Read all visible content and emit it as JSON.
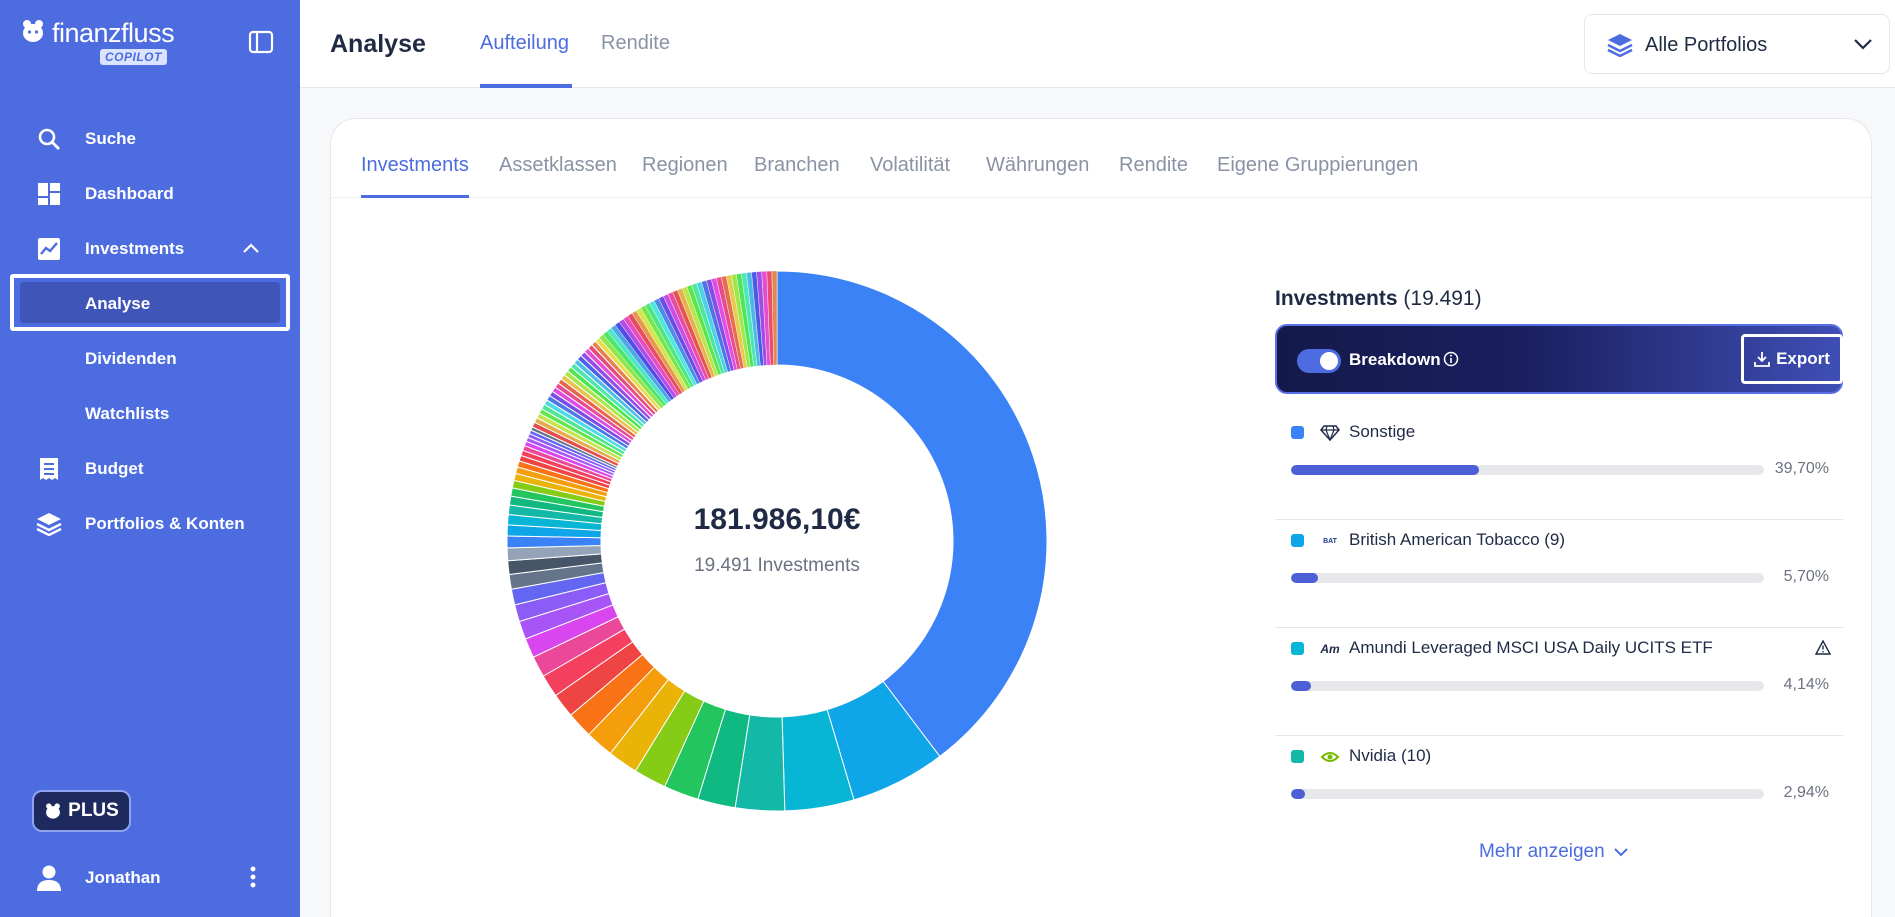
{
  "app": {
    "brand": "finanzfluss",
    "brand_badge": "COPILOT"
  },
  "sidebar": {
    "items": [
      {
        "label": "Suche"
      },
      {
        "label": "Dashboard"
      },
      {
        "label": "Investments"
      },
      {
        "label": "Analyse"
      },
      {
        "label": "Dividenden"
      },
      {
        "label": "Watchlists"
      },
      {
        "label": "Budget"
      },
      {
        "label": "Portfolios & Konten"
      }
    ],
    "plus_label": "PLUS",
    "user_name": "Jonathan"
  },
  "header": {
    "title": "Analyse",
    "tabs": [
      {
        "label": "Aufteilung",
        "active": true
      },
      {
        "label": "Rendite",
        "active": false
      }
    ],
    "portfolio_select": "Alle Portfolios"
  },
  "subtabs": [
    {
      "label": "Investments"
    },
    {
      "label": "Assetklassen"
    },
    {
      "label": "Regionen"
    },
    {
      "label": "Branchen"
    },
    {
      "label": "Volatilität"
    },
    {
      "label": "Währungen"
    },
    {
      "label": "Rendite"
    },
    {
      "label": "Eigene Gruppierungen"
    }
  ],
  "donut": {
    "total": "181.986,10€",
    "subtitle": "19.491 Investments"
  },
  "investments": {
    "title": "Investments",
    "count": "(19.491)",
    "breakdown_label": "Breakdown",
    "export_label": "Export",
    "items": [
      {
        "name": "Sonstige",
        "pct_text": "39,70%",
        "pct": 39.7,
        "color": "#3b82f6",
        "icon": "diamond-icon"
      },
      {
        "name": "British American Tobacco (9)",
        "pct_text": "5,70%",
        "pct": 5.7,
        "color": "#0ea5e9",
        "icon": "bat-logo-icon"
      },
      {
        "name": "Amundi Leveraged MSCI USA Daily UCITS ETF",
        "pct_text": "4,14%",
        "pct": 4.14,
        "color": "#06b6d4",
        "icon": "amundi-logo-icon"
      },
      {
        "name": "Nvidia (10)",
        "pct_text": "2,94%",
        "pct": 2.94,
        "color": "#14b8a6",
        "icon": "nvidia-logo-icon"
      }
    ],
    "more_label": "Mehr anzeigen"
  },
  "chart_data": {
    "type": "pie",
    "slices": [
      {
        "label": "Sonstige",
        "value": 39.7,
        "color": "#3b82f6"
      },
      {
        "label": "British American Tobacco (9)",
        "value": 5.7,
        "color": "#0ea5e9"
      },
      {
        "label": "Amundi Leveraged MSCI USA Daily UCITS ETF",
        "value": 4.14,
        "color": "#06b6d4"
      },
      {
        "label": "Nvidia (10)",
        "value": 2.94,
        "color": "#14b8a6"
      }
    ],
    "other_colors": [
      "#10b981",
      "#22c55e",
      "#84cc16",
      "#eab308",
      "#f59e0b",
      "#f97316",
      "#ef4444",
      "#f43f5e",
      "#ec4899",
      "#d946ef",
      "#a855f7",
      "#8b5cf6",
      "#6366f1",
      "#64748b",
      "#475569",
      "#94a3b8",
      "#3b82f6",
      "#0ea5e9",
      "#06b6d4",
      "#14b8a6",
      "#10b981",
      "#22c55e",
      "#84cc16",
      "#eab308",
      "#f59e0b",
      "#f97316",
      "#ef4444",
      "#f43f5e",
      "#ec4899",
      "#d946ef",
      "#a855f7",
      "#8b5cf6",
      "#6366f1",
      "#64748b"
    ]
  }
}
